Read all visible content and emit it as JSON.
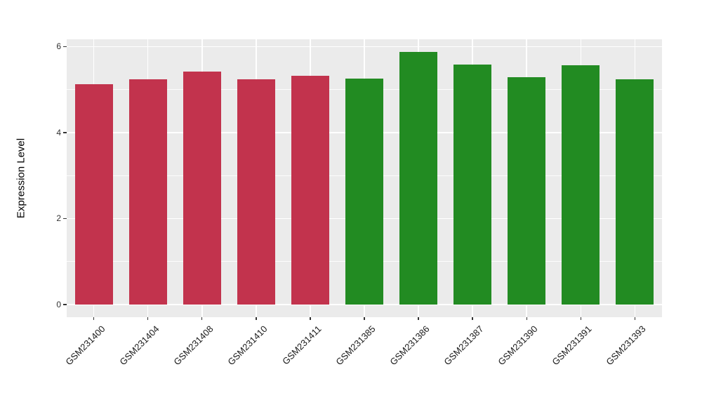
{
  "figure": {
    "background": "#FFFFFF",
    "panel_background": "#EBEBEB",
    "gridline_color": "#FFFFFF",
    "axis_text_color": "#333333",
    "group_colors": {
      "red_group": "#C2334D",
      "green_group": "#228B22"
    }
  },
  "chart_data": {
    "type": "bar",
    "title": "",
    "xlabel": "",
    "ylabel": "Expression Level",
    "categories": [
      "GSM231400",
      "GSM231404",
      "GSM231408",
      "GSM231410",
      "GSM231411",
      "GSM231385",
      "GSM231386",
      "GSM231387",
      "GSM231390",
      "GSM231391",
      "GSM231393"
    ],
    "values": [
      5.13,
      5.24,
      5.42,
      5.24,
      5.33,
      5.26,
      5.88,
      5.58,
      5.3,
      5.57,
      5.24
    ],
    "colors": [
      "#C2334D",
      "#C2334D",
      "#C2334D",
      "#C2334D",
      "#C2334D",
      "#228B22",
      "#228B22",
      "#228B22",
      "#228B22",
      "#228B22",
      "#228B22"
    ],
    "ylim": [
      0,
      6.18
    ],
    "yticks": [
      0,
      2,
      4,
      6
    ],
    "yticks_minor": [
      1,
      3,
      5
    ],
    "grid": true,
    "legend": "none"
  }
}
